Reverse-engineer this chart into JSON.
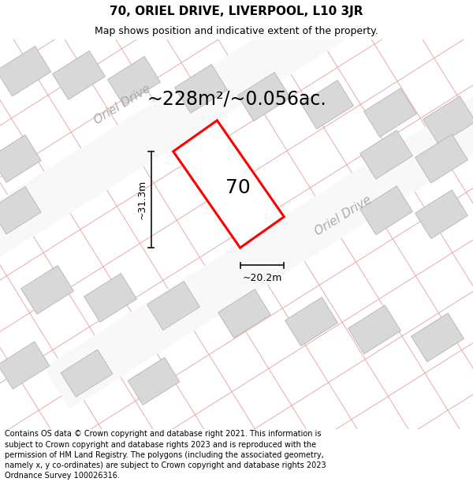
{
  "title_line1": "70, ORIEL DRIVE, LIVERPOOL, L10 3JR",
  "title_line2": "Map shows position and indicative extent of the property.",
  "area_text": "~228m²/~0.056ac.",
  "width_label": "~20.2m",
  "height_label": "~31.3m",
  "property_number": "70",
  "road_label1": "Oriel Drive",
  "road_label2": "Oriel Drive",
  "footer_text": "Contains OS data © Crown copyright and database right 2021. This information is subject to Crown copyright and database rights 2023 and is reproduced with the permission of HM Land Registry. The polygons (including the associated geometry, namely x, y co-ordinates) are subject to Crown copyright and database rights 2023 Ordnance Survey 100026316.",
  "map_bg": "#eeeeee",
  "road_color": "#f8f8f8",
  "building_color": "#d8d8d8",
  "building_outline": "#bbbbbb",
  "plot_color": "#ffffff",
  "plot_outline": "#ff0000",
  "grid_line_color": "#e8aaaa",
  "road_label_color": "#aaaaaa",
  "dim_line_color": "#222222",
  "title_fontsize": 11,
  "subtitle_fontsize": 9,
  "area_fontsize": 17,
  "label_fontsize": 9,
  "road_label_fontsize": 11,
  "prop_num_fontsize": 18
}
